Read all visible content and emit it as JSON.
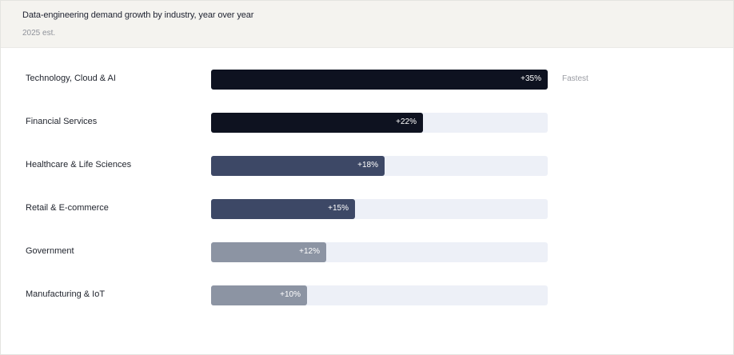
{
  "header": {
    "title": "Data-engineering demand growth by industry, year over year",
    "subtitle": "2025 est."
  },
  "colors": {
    "track": "#edf0f7",
    "tier_high": "#0e1220",
    "tier_mid": "#3d4866",
    "tier_low": "#8c94a3",
    "value_text": "#ffffff"
  },
  "chart_data": {
    "type": "bar",
    "orientation": "horizontal",
    "title": "Data-engineering demand growth by industry, year over year",
    "subtitle": "2025 est.",
    "categories": [
      "Technology, Cloud & AI",
      "Financial Services",
      "Healthcare & Life Sciences",
      "Retail & E-commerce",
      "Government",
      "Manufacturing & IoT"
    ],
    "values": [
      35,
      22,
      18,
      15,
      12,
      10
    ],
    "value_labels": [
      "+35%",
      "+22%",
      "+18%",
      "+15%",
      "+12%",
      "+10%"
    ],
    "tiers": [
      "high",
      "high",
      "mid",
      "mid",
      "low",
      "low"
    ],
    "xlim": [
      0,
      35
    ],
    "unit": "%",
    "grid": false,
    "annotations": [
      {
        "category": "Technology, Cloud & AI",
        "text": "Fastest"
      }
    ]
  }
}
